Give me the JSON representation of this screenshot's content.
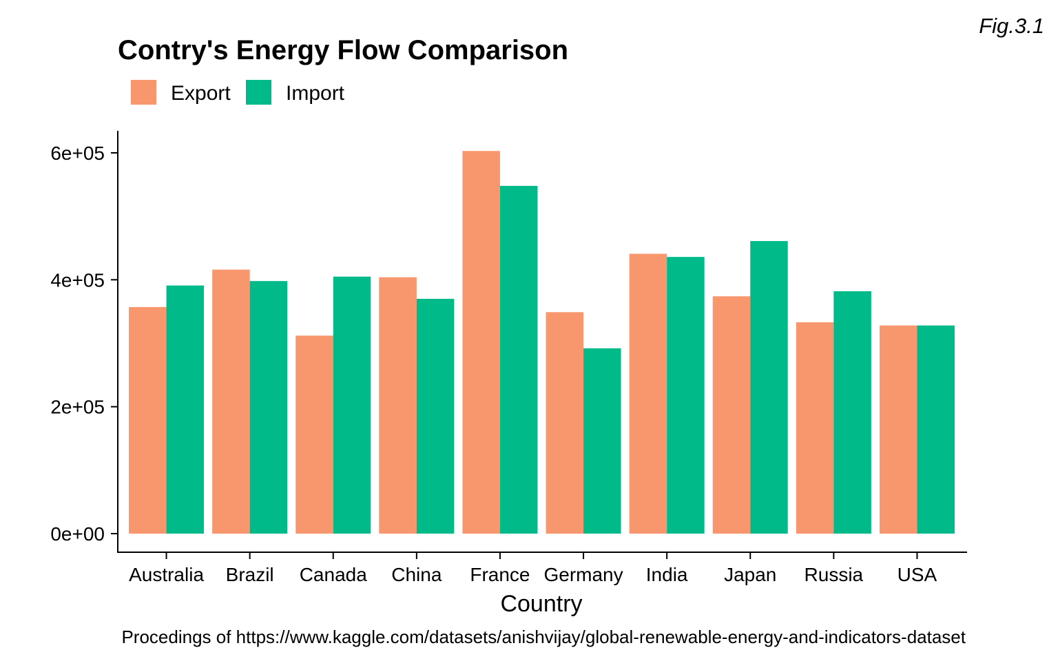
{
  "figure_label": "Fig.3.1",
  "caption": "Procedings of https://www.kaggle.com/datasets/anishvijay/global-renewable-energy-and-indicators-dataset",
  "chart_data": {
    "type": "bar",
    "title": "Contry's Energy Flow Comparison",
    "xlabel": "Country",
    "ylabel": "",
    "categories": [
      "Australia",
      "Brazil",
      "Canada",
      "China",
      "France",
      "Germany",
      "India",
      "Japan",
      "Russia",
      "USA"
    ],
    "series": [
      {
        "name": "Export",
        "color": "#F8966E",
        "values": [
          357000,
          416000,
          312000,
          404000,
          603000,
          349000,
          441000,
          374000,
          333000,
          328000
        ]
      },
      {
        "name": "Import",
        "color": "#00BA8A",
        "values": [
          391000,
          398000,
          405000,
          370000,
          548000,
          292000,
          436000,
          461000,
          382000,
          328000
        ]
      }
    ],
    "ylim": [
      0,
      630000
    ],
    "yticks": [
      0,
      200000,
      400000,
      600000
    ],
    "ytick_labels": [
      "0e+00",
      "2e+05",
      "4e+05",
      "6e+05"
    ],
    "legend_position": "top",
    "grid": false
  }
}
